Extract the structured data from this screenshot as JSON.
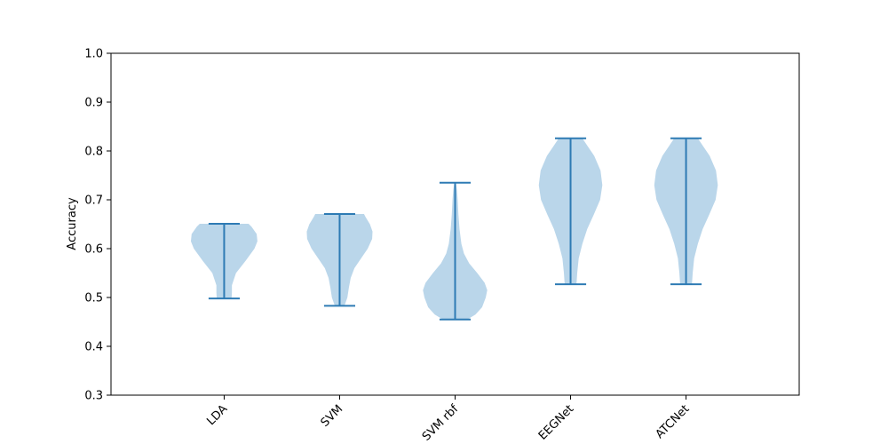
{
  "chart_data": {
    "type": "violin",
    "title": "",
    "xlabel": "",
    "ylabel": "Accuracy",
    "ylim": [
      0.3,
      1.0
    ],
    "yticks": [
      "0.3",
      "0.4",
      "0.5",
      "0.6",
      "0.7",
      "0.8",
      "0.9",
      "1.0"
    ],
    "categories": [
      "LDA",
      "SVM",
      "SVM rbf",
      "EEGNet",
      "ATCNet"
    ],
    "grid": false,
    "colors": {
      "body": "#bad6ea",
      "line": "#2e7bb4"
    },
    "series": [
      {
        "category": "LDA",
        "min": 0.498,
        "max": 0.651,
        "profile": [
          [
            0.498,
            0.2
          ],
          [
            0.51,
            0.21
          ],
          [
            0.525,
            0.21
          ],
          [
            0.55,
            0.32
          ],
          [
            0.575,
            0.58
          ],
          [
            0.6,
            0.82
          ],
          [
            0.615,
            0.9
          ],
          [
            0.63,
            0.88
          ],
          [
            0.645,
            0.74
          ],
          [
            0.651,
            0.66
          ]
        ]
      },
      {
        "category": "SVM",
        "min": 0.483,
        "max": 0.671,
        "profile": [
          [
            0.483,
            0.13
          ],
          [
            0.5,
            0.21
          ],
          [
            0.52,
            0.25
          ],
          [
            0.54,
            0.3
          ],
          [
            0.56,
            0.4
          ],
          [
            0.58,
            0.58
          ],
          [
            0.6,
            0.76
          ],
          [
            0.62,
            0.88
          ],
          [
            0.635,
            0.89
          ],
          [
            0.65,
            0.82
          ],
          [
            0.665,
            0.7
          ],
          [
            0.671,
            0.66
          ]
        ]
      },
      {
        "category": "SVM rbf",
        "min": 0.455,
        "max": 0.735,
        "profile": [
          [
            0.455,
            0.33
          ],
          [
            0.465,
            0.55
          ],
          [
            0.48,
            0.73
          ],
          [
            0.5,
            0.83
          ],
          [
            0.515,
            0.87
          ],
          [
            0.53,
            0.8
          ],
          [
            0.55,
            0.6
          ],
          [
            0.57,
            0.38
          ],
          [
            0.59,
            0.24
          ],
          [
            0.61,
            0.17
          ],
          [
            0.64,
            0.12
          ],
          [
            0.67,
            0.09
          ],
          [
            0.7,
            0.07
          ],
          [
            0.72,
            0.05
          ],
          [
            0.735,
            0.02
          ]
        ]
      },
      {
        "category": "EEGNet",
        "min": 0.527,
        "max": 0.826,
        "profile": [
          [
            0.527,
            0.16
          ],
          [
            0.55,
            0.18
          ],
          [
            0.58,
            0.22
          ],
          [
            0.61,
            0.32
          ],
          [
            0.64,
            0.45
          ],
          [
            0.67,
            0.63
          ],
          [
            0.7,
            0.8
          ],
          [
            0.73,
            0.86
          ],
          [
            0.76,
            0.81
          ],
          [
            0.79,
            0.64
          ],
          [
            0.81,
            0.46
          ],
          [
            0.826,
            0.32
          ]
        ]
      },
      {
        "category": "ATCNet",
        "min": 0.527,
        "max": 0.826,
        "profile": [
          [
            0.527,
            0.16
          ],
          [
            0.55,
            0.18
          ],
          [
            0.58,
            0.22
          ],
          [
            0.61,
            0.32
          ],
          [
            0.64,
            0.45
          ],
          [
            0.67,
            0.63
          ],
          [
            0.7,
            0.8
          ],
          [
            0.73,
            0.86
          ],
          [
            0.76,
            0.81
          ],
          [
            0.79,
            0.64
          ],
          [
            0.81,
            0.46
          ],
          [
            0.826,
            0.32
          ]
        ]
      }
    ]
  }
}
